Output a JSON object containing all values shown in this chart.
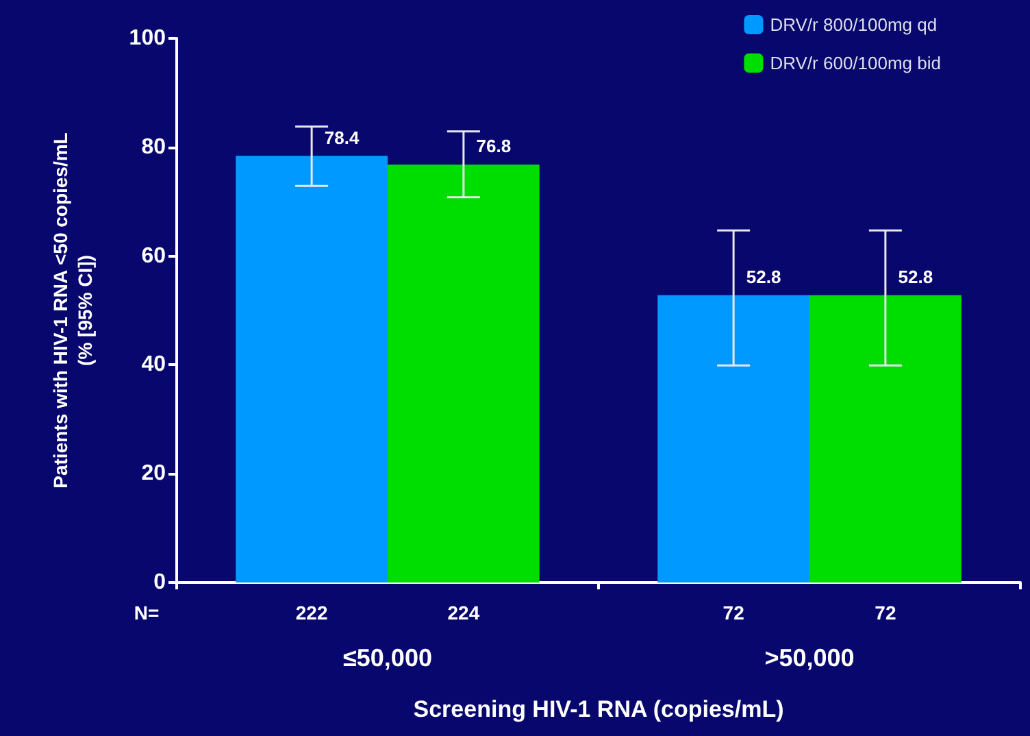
{
  "chart_data": {
    "type": "bar",
    "categories": [
      "≤50,000",
      ">50,000"
    ],
    "xlabel": "Screening HIV-1 RNA (copies/mL)",
    "ylabel": "Patients with HIV-1 RNA <50 copies/mL\n(% [95% CI])",
    "series": [
      {
        "name": "DRV/r 800/100mg qd",
        "color": "#0099ff",
        "values": [
          78.4,
          52.8
        ],
        "errors": [
          [
            72.9,
            83.8
          ],
          [
            39.9,
            64.7
          ]
        ]
      },
      {
        "name": "DRV/r 600/100mg bid",
        "color": "#00dd00",
        "values": [
          76.8,
          52.8
        ],
        "errors": [
          [
            70.8,
            82.9
          ],
          [
            39.9,
            64.7
          ]
        ]
      }
    ],
    "ylim": [
      0,
      100
    ],
    "yticks": [
      0,
      20,
      40,
      60,
      80,
      100
    ],
    "data_labels": true,
    "grid": false,
    "legend": "top right",
    "annotations": [
      "N=",
      "222",
      "224",
      "72",
      "72"
    ]
  }
}
